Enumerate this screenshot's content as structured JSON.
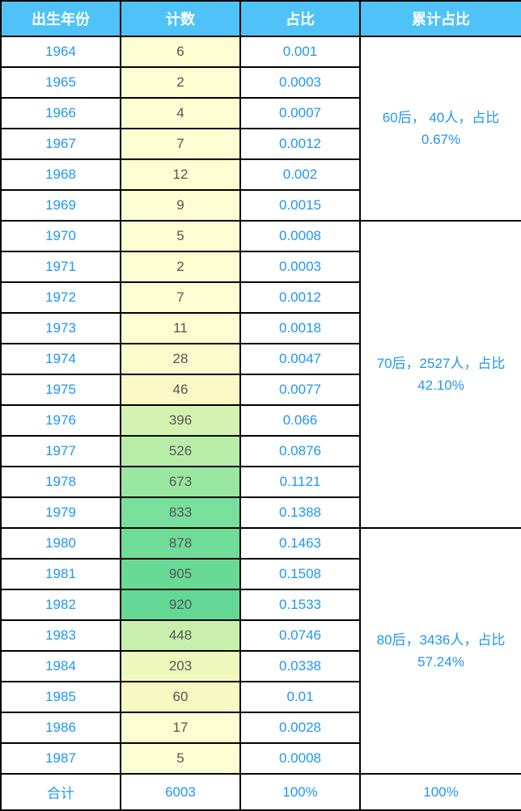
{
  "table": {
    "header_bg": "#4fc3f7",
    "header_color": "#ffffff",
    "border_color": "#000000",
    "year_color": "#2196f3",
    "ratio_color": "#2196f3",
    "count_text_color": "#555555",
    "columns": {
      "year": "出生年份",
      "count": "计数",
      "ratio": "占比",
      "cumulative": "累计占比"
    },
    "count_heatmap_colors": {
      "min": "#fdfdd2",
      "low": "#f6f9b8",
      "mid": "#c8f0a8",
      "high": "#8ee6a0",
      "max": "#63d895"
    },
    "rows": [
      {
        "year": "1964",
        "count": 6,
        "ratio": "0.001",
        "count_bg": "#fdfdd2"
      },
      {
        "year": "1965",
        "count": 2,
        "ratio": "0.0003",
        "count_bg": "#fdfdd2"
      },
      {
        "year": "1966",
        "count": 4,
        "ratio": "0.0007",
        "count_bg": "#fdfdd2"
      },
      {
        "year": "1967",
        "count": 7,
        "ratio": "0.0012",
        "count_bg": "#fdfdd2"
      },
      {
        "year": "1968",
        "count": 12,
        "ratio": "0.002",
        "count_bg": "#fdfdd2"
      },
      {
        "year": "1969",
        "count": 9,
        "ratio": "0.0015",
        "count_bg": "#fdfdd2"
      },
      {
        "year": "1970",
        "count": 5,
        "ratio": "0.0008",
        "count_bg": "#fdfdd2"
      },
      {
        "year": "1971",
        "count": 2,
        "ratio": "0.0003",
        "count_bg": "#fdfdd2"
      },
      {
        "year": "1972",
        "count": 7,
        "ratio": "0.0012",
        "count_bg": "#fdfdd2"
      },
      {
        "year": "1973",
        "count": 11,
        "ratio": "0.0018",
        "count_bg": "#fdfdd2"
      },
      {
        "year": "1974",
        "count": 28,
        "ratio": "0.0047",
        "count_bg": "#fbfccb"
      },
      {
        "year": "1975",
        "count": 46,
        "ratio": "0.0077",
        "count_bg": "#faf9c5"
      },
      {
        "year": "1976",
        "count": 396,
        "ratio": "0.066",
        "count_bg": "#d4f3b0"
      },
      {
        "year": "1977",
        "count": 526,
        "ratio": "0.0876",
        "count_bg": "#b8eda8"
      },
      {
        "year": "1978",
        "count": 673,
        "ratio": "0.1121",
        "count_bg": "#9ae7a2"
      },
      {
        "year": "1979",
        "count": 833,
        "ratio": "0.1388",
        "count_bg": "#78df9c"
      },
      {
        "year": "1980",
        "count": 878,
        "ratio": "0.1463",
        "count_bg": "#6fdc98"
      },
      {
        "year": "1981",
        "count": 905,
        "ratio": "0.1508",
        "count_bg": "#68da96"
      },
      {
        "year": "1982",
        "count": 920,
        "ratio": "0.1533",
        "count_bg": "#63d895"
      },
      {
        "year": "1983",
        "count": 448,
        "ratio": "0.0746",
        "count_bg": "#c8f0ac"
      },
      {
        "year": "1984",
        "count": 203,
        "ratio": "0.0338",
        "count_bg": "#eef8bc"
      },
      {
        "year": "1985",
        "count": 60,
        "ratio": "0.01",
        "count_bg": "#f8f8c2"
      },
      {
        "year": "1986",
        "count": 17,
        "ratio": "0.0028",
        "count_bg": "#fdfdd2"
      },
      {
        "year": "1987",
        "count": 5,
        "ratio": "0.0008",
        "count_bg": "#fdfdd2"
      }
    ],
    "groups": [
      {
        "span": 6,
        "text": "60后，  40人，占比 0.67%"
      },
      {
        "span": 10,
        "text": "70后，2527人，占比42.10%"
      },
      {
        "span": 8,
        "text": "80后，3436人，占比57.24%"
      }
    ],
    "total": {
      "label": "合计",
      "count": "6003",
      "ratio": "100%",
      "cumulative": "100%"
    }
  }
}
